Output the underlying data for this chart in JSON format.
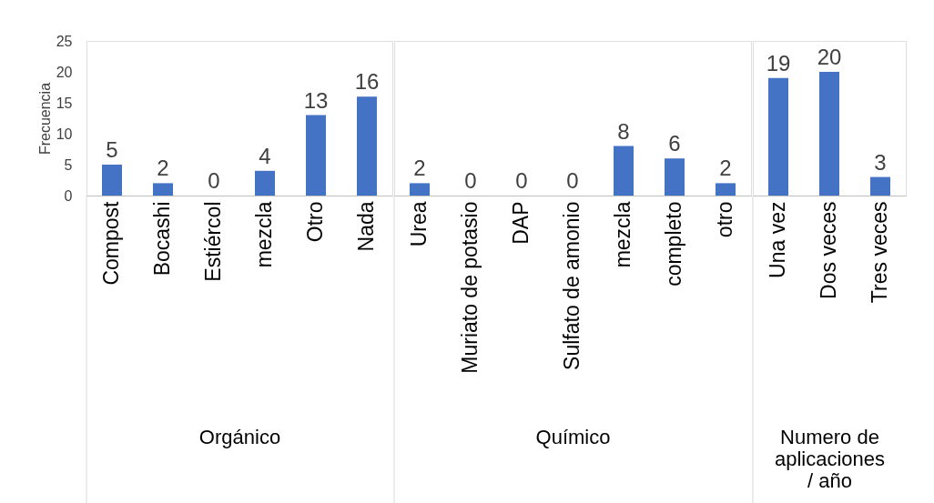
{
  "chart_data": [
    {
      "type": "bar",
      "xlabel": "Orgánico",
      "ylabel": "Frecuencia",
      "categories": [
        "Compost",
        "Bocashi",
        "Estiércol",
        "mezcla",
        "Otro",
        "Nada"
      ],
      "values": [
        5,
        2,
        0,
        4,
        13,
        16
      ],
      "color": "#4472c4",
      "ylim": [
        0,
        25
      ],
      "yticks": [
        0,
        5,
        10,
        15,
        20,
        25
      ],
      "data_labels": true,
      "grid": false
    },
    {
      "type": "bar",
      "xlabel": "Químico",
      "categories": [
        "Urea",
        "Muriato de potasio",
        "DAP",
        "Sulfato de amonio",
        "mezcla",
        "completo",
        "otro"
      ],
      "values": [
        2,
        0,
        0,
        0,
        8,
        6,
        2
      ],
      "color": "#4472c4",
      "ylim": [
        0,
        25
      ],
      "data_labels": true,
      "grid": false,
      "tick_labels": "x"
    },
    {
      "type": "bar",
      "xlabel": "Numero de aplicaciones / año",
      "categories": [
        "Una vez",
        "Dos veces",
        "Tres veces"
      ],
      "values": [
        19,
        20,
        3
      ],
      "color": "#4472c4",
      "ylim": [
        0,
        25
      ],
      "data_labels": true,
      "grid": false,
      "tick_labels": "x"
    }
  ]
}
